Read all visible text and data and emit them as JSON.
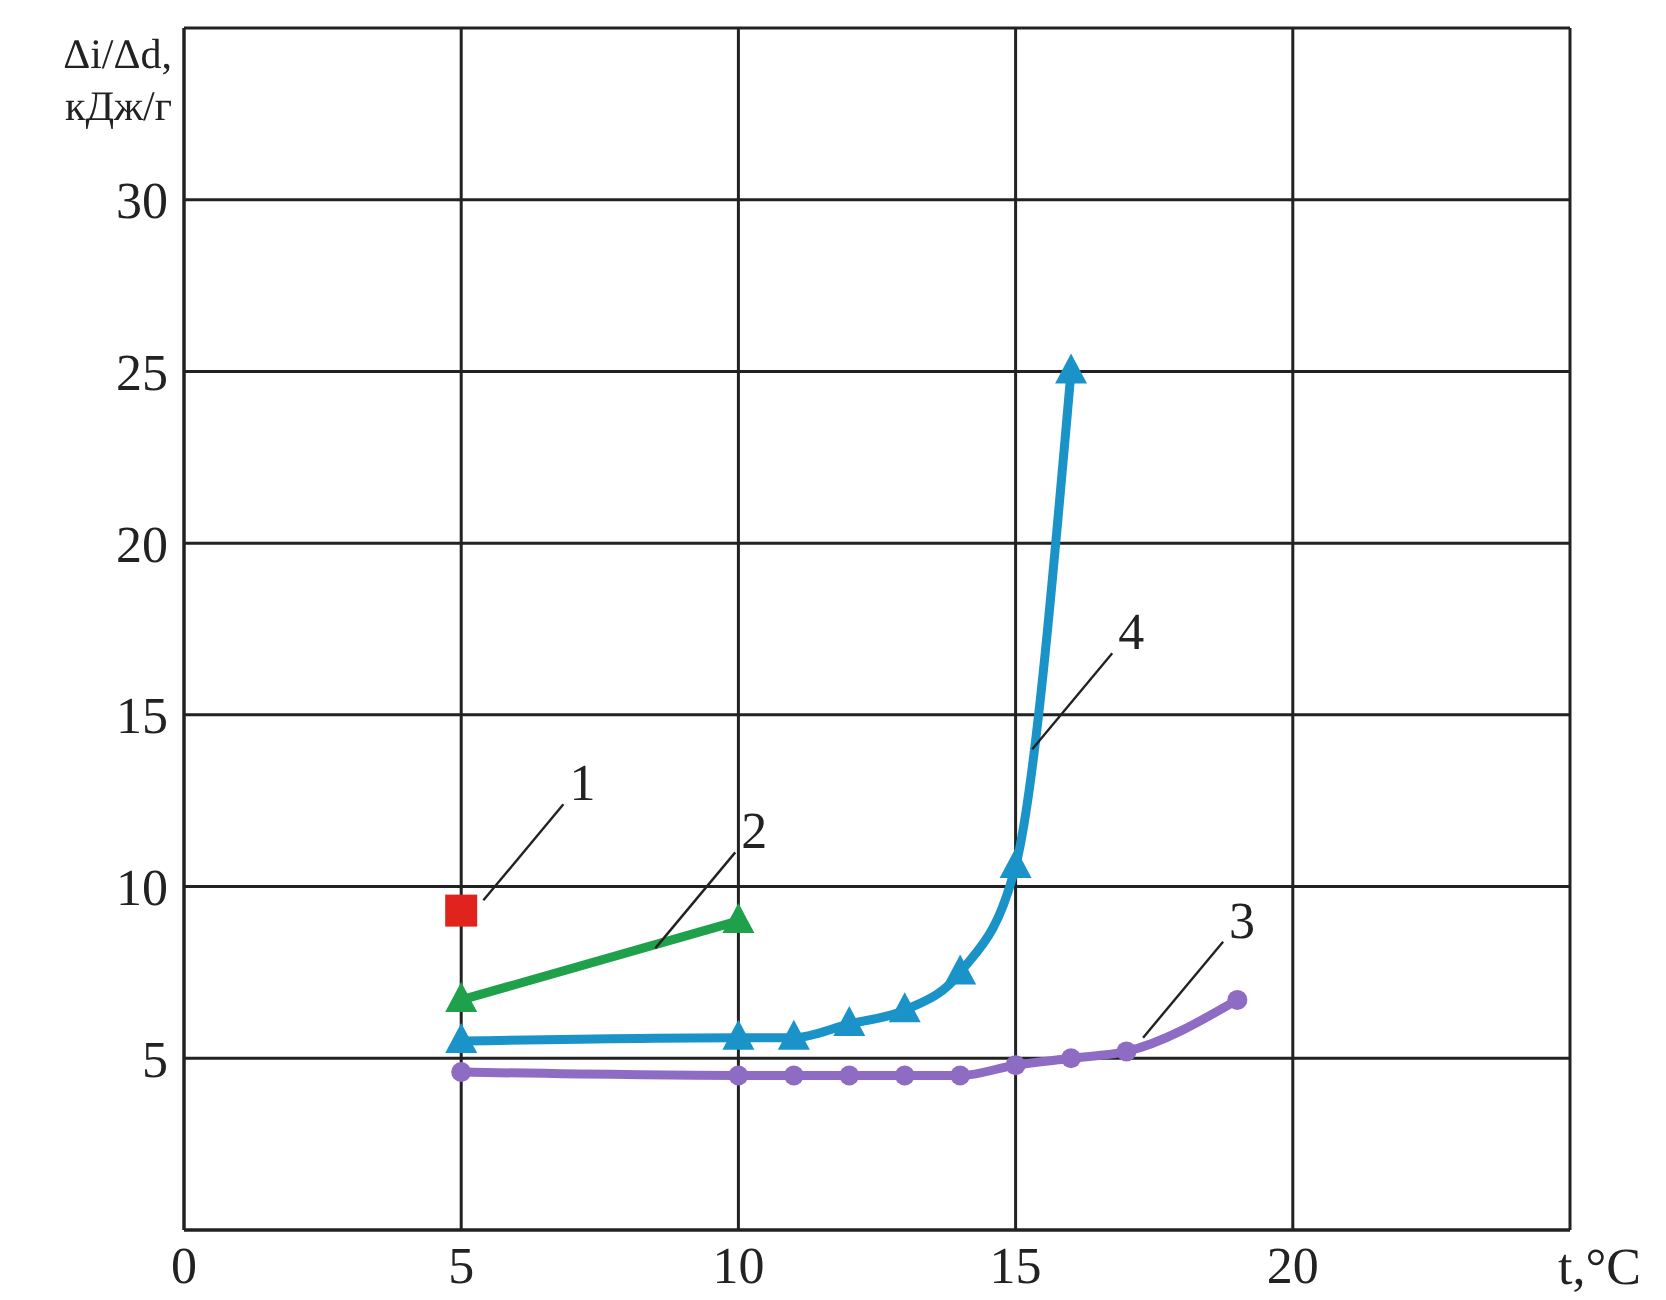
{
  "chart_data": {
    "type": "line",
    "xlabel": "t,°C",
    "ylabel": "Δi/Δd,\nкДж/г",
    "xlim": [
      0,
      25
    ],
    "xticks": [
      0,
      5,
      10,
      15,
      20,
      {
        "value": 25,
        "label": null
      }
    ],
    "ylim": [
      0,
      35
    ],
    "yticks": [
      5,
      10,
      15,
      20,
      25,
      30,
      {
        "value": 35,
        "label": null
      }
    ],
    "grid": true,
    "legend": false,
    "line_style": "solid",
    "series": [
      {
        "type": "scatter",
        "color": "#e0231c",
        "marker": "square",
        "x": [
          5
        ],
        "values": [
          9.3
        ]
      },
      {
        "color": "#1fa04a",
        "marker": "triangle",
        "x": [
          5,
          10
        ],
        "values": [
          6.7,
          9.0
        ]
      },
      {
        "color": "#8e6cc4",
        "marker": "circle",
        "x": [
          5,
          10,
          11,
          12,
          13,
          14,
          15,
          16,
          17,
          19
        ],
        "values": [
          4.6,
          4.5,
          4.5,
          4.5,
          4.5,
          4.5,
          4.8,
          5.0,
          5.2,
          6.7
        ]
      },
      {
        "color": "#1a93c8",
        "marker": "triangle",
        "x": [
          5,
          10,
          11,
          12,
          13,
          14,
          15,
          16
        ],
        "values": [
          5.5,
          5.6,
          5.6,
          6.0,
          6.4,
          7.5,
          10.6,
          25
        ]
      }
    ],
    "annotations": [
      {
        "text": "1",
        "x": 5.4,
        "y": 9.6
      },
      {
        "text": "2",
        "x": 8.5,
        "y": 8.2
      },
      {
        "text": "3",
        "x": 17.3,
        "y": 5.6
      },
      {
        "text": "4",
        "x": 15.3,
        "y": 14
      }
    ]
  }
}
